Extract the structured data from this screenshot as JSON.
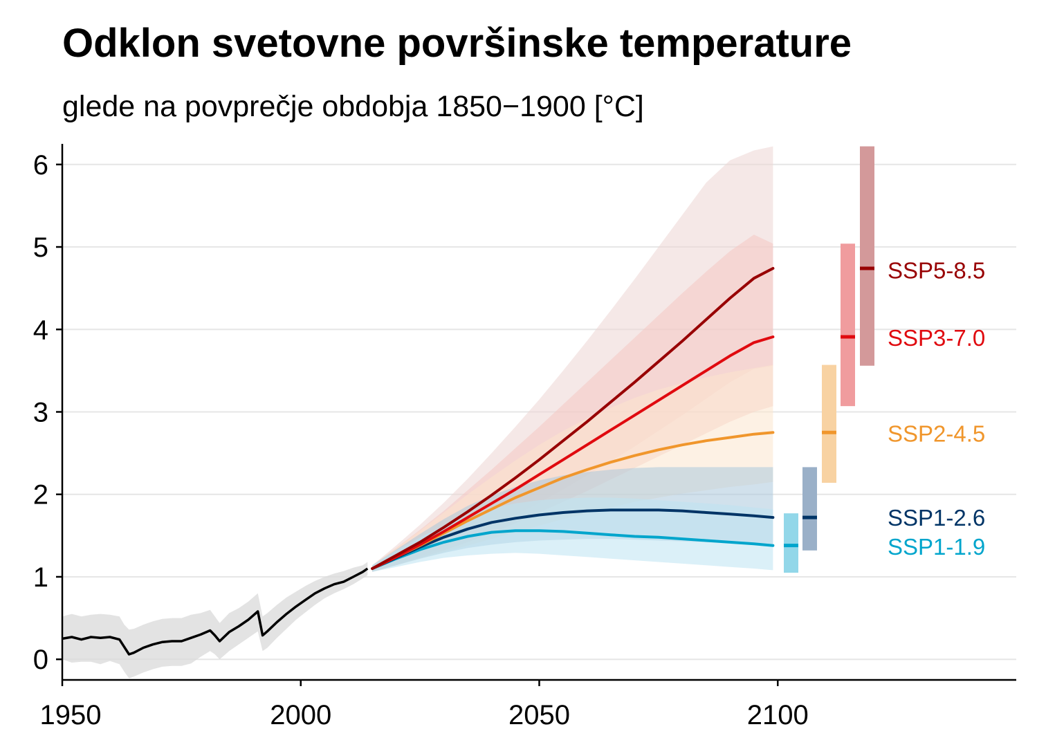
{
  "chart_data": {
    "type": "line",
    "title": "Odklon svetovne površinske temperature",
    "subtitle": "glede na povprečje obdobja 1850−1900 [°C]",
    "xlim": [
      1950,
      2150
    ],
    "ylim": [
      -0.25,
      6.25
    ],
    "x_ticks": [
      {
        "value": 1950,
        "label": "1950"
      },
      {
        "value": 2000,
        "label": "2000"
      },
      {
        "value": 2050,
        "label": "2050"
      },
      {
        "value": 2100,
        "label": "2100"
      }
    ],
    "y_ticks": [
      {
        "value": 0,
        "label": "0"
      },
      {
        "value": 1,
        "label": "1"
      },
      {
        "value": 2,
        "label": "2"
      },
      {
        "value": 3,
        "label": "3"
      },
      {
        "value": 4,
        "label": "4"
      },
      {
        "value": 5,
        "label": "5"
      },
      {
        "value": 6,
        "label": "6"
      }
    ],
    "grid": "horizontal",
    "historical": {
      "name": "historical",
      "color": "#000000",
      "band_color": "#d9d9d9",
      "x": [
        1950,
        1952,
        1954,
        1956,
        1958,
        1960,
        1962,
        1963,
        1964,
        1965,
        1967,
        1969,
        1971,
        1973,
        1975,
        1977,
        1979,
        1981,
        1982,
        1983,
        1985,
        1987,
        1989,
        1991,
        1992,
        1993,
        1995,
        1997,
        1999,
        2001,
        2003,
        2005,
        2007,
        2009,
        2011,
        2013,
        2014
      ],
      "mean": [
        0.25,
        0.27,
        0.24,
        0.27,
        0.26,
        0.27,
        0.24,
        0.15,
        0.06,
        0.08,
        0.14,
        0.18,
        0.21,
        0.22,
        0.22,
        0.26,
        0.3,
        0.35,
        0.29,
        0.22,
        0.33,
        0.4,
        0.48,
        0.58,
        0.29,
        0.34,
        0.45,
        0.55,
        0.64,
        0.72,
        0.8,
        0.86,
        0.91,
        0.94,
        1.0,
        1.06,
        1.1
      ],
      "low": [
        0.0,
        -0.04,
        -0.03,
        -0.03,
        -0.06,
        -0.02,
        -0.06,
        -0.15,
        -0.23,
        -0.21,
        -0.16,
        -0.12,
        -0.09,
        -0.08,
        -0.08,
        -0.05,
        0.03,
        0.1,
        0.06,
        0.0,
        0.1,
        0.18,
        0.26,
        0.34,
        0.1,
        0.14,
        0.26,
        0.37,
        0.48,
        0.57,
        0.66,
        0.74,
        0.8,
        0.85,
        0.91,
        0.98,
        1.02
      ],
      "high": [
        0.52,
        0.55,
        0.52,
        0.54,
        0.55,
        0.54,
        0.52,
        0.42,
        0.36,
        0.37,
        0.42,
        0.46,
        0.49,
        0.5,
        0.5,
        0.54,
        0.56,
        0.6,
        0.52,
        0.44,
        0.56,
        0.62,
        0.7,
        0.8,
        0.52,
        0.56,
        0.66,
        0.75,
        0.82,
        0.89,
        0.95,
        1.0,
        1.04,
        1.07,
        1.11,
        1.14,
        1.18
      ]
    },
    "series": [
      {
        "name": "SSP1-1.9",
        "color": "#00a5cc",
        "band_color": "#bde3f2",
        "bar_color": "#92d7e9",
        "x": [
          2015,
          2020,
          2025,
          2030,
          2035,
          2040,
          2045,
          2050,
          2055,
          2060,
          2065,
          2070,
          2075,
          2080,
          2085,
          2090,
          2095,
          2099
        ],
        "mean": [
          1.1,
          1.22,
          1.33,
          1.42,
          1.49,
          1.54,
          1.56,
          1.56,
          1.55,
          1.53,
          1.51,
          1.49,
          1.48,
          1.46,
          1.44,
          1.42,
          1.4,
          1.38
        ],
        "low": [
          1.06,
          1.12,
          1.18,
          1.23,
          1.26,
          1.28,
          1.29,
          1.28,
          1.26,
          1.24,
          1.22,
          1.2,
          1.18,
          1.16,
          1.14,
          1.12,
          1.1,
          1.08
        ],
        "high": [
          1.14,
          1.32,
          1.48,
          1.62,
          1.74,
          1.83,
          1.89,
          1.93,
          1.95,
          1.96,
          1.96,
          1.95,
          1.93,
          1.91,
          1.89,
          1.87,
          1.84,
          1.82
        ],
        "range_2100": [
          1.05,
          1.77
        ],
        "label": "SSP1-1.9"
      },
      {
        "name": "SSP1-2.6",
        "color": "#003466",
        "band_color": "#abc8dc",
        "bar_color": "#9ab0c8",
        "x": [
          2015,
          2020,
          2025,
          2030,
          2035,
          2040,
          2045,
          2050,
          2055,
          2060,
          2065,
          2070,
          2075,
          2080,
          2085,
          2090,
          2095,
          2099
        ],
        "mean": [
          1.1,
          1.23,
          1.36,
          1.48,
          1.58,
          1.66,
          1.71,
          1.75,
          1.78,
          1.8,
          1.81,
          1.81,
          1.81,
          1.8,
          1.78,
          1.76,
          1.74,
          1.72
        ],
        "low": [
          1.06,
          1.14,
          1.22,
          1.29,
          1.35,
          1.39,
          1.42,
          1.44,
          1.45,
          1.46,
          1.46,
          1.45,
          1.44,
          1.43,
          1.42,
          1.41,
          1.4,
          1.39
        ],
        "high": [
          1.14,
          1.33,
          1.52,
          1.7,
          1.86,
          1.99,
          2.09,
          2.17,
          2.23,
          2.27,
          2.3,
          2.32,
          2.33,
          2.33,
          2.33,
          2.33,
          2.33,
          2.33
        ],
        "range_2100": [
          1.32,
          2.33
        ],
        "label": "SSP1-2.6"
      },
      {
        "name": "SSP2-4.5",
        "color": "#f0962c",
        "band_color": "#fbe5cd",
        "bar_color": "#f8d2a2",
        "x": [
          2015,
          2020,
          2025,
          2030,
          2035,
          2040,
          2045,
          2050,
          2055,
          2060,
          2065,
          2070,
          2075,
          2080,
          2085,
          2090,
          2095,
          2099
        ],
        "mean": [
          1.1,
          1.24,
          1.38,
          1.53,
          1.68,
          1.82,
          1.96,
          2.08,
          2.2,
          2.3,
          2.39,
          2.47,
          2.54,
          2.6,
          2.65,
          2.69,
          2.73,
          2.75
        ],
        "low": [
          1.06,
          1.14,
          1.22,
          1.3,
          1.38,
          1.46,
          1.54,
          1.62,
          1.7,
          1.77,
          1.84,
          1.91,
          1.96,
          2.01,
          2.05,
          2.09,
          2.12,
          2.15
        ],
        "high": [
          1.14,
          1.35,
          1.56,
          1.78,
          2.0,
          2.21,
          2.41,
          2.6,
          2.77,
          2.92,
          3.05,
          3.17,
          3.27,
          3.35,
          3.42,
          3.48,
          3.53,
          3.57
        ],
        "range_2100": [
          2.14,
          3.57
        ],
        "label": "SSP2-4.5"
      },
      {
        "name": "SSP3-7.0",
        "color": "#e00a0f",
        "band_color": "#f4c6c3",
        "bar_color": "#f09c9e",
        "x": [
          2015,
          2020,
          2025,
          2030,
          2035,
          2040,
          2045,
          2050,
          2055,
          2060,
          2065,
          2070,
          2075,
          2080,
          2085,
          2090,
          2095,
          2099
        ],
        "mean": [
          1.1,
          1.24,
          1.39,
          1.55,
          1.72,
          1.89,
          2.06,
          2.24,
          2.42,
          2.6,
          2.78,
          2.96,
          3.14,
          3.32,
          3.5,
          3.68,
          3.84,
          3.91
        ],
        "low": [
          1.06,
          1.14,
          1.23,
          1.32,
          1.42,
          1.53,
          1.65,
          1.78,
          1.91,
          2.04,
          2.18,
          2.32,
          2.46,
          2.6,
          2.74,
          2.88,
          3.0,
          3.07
        ],
        "high": [
          1.14,
          1.35,
          1.57,
          1.8,
          2.05,
          2.3,
          2.56,
          2.82,
          3.09,
          3.36,
          3.63,
          3.9,
          4.17,
          4.44,
          4.7,
          4.95,
          5.15,
          5.04
        ],
        "range_2100": [
          3.07,
          5.04
        ],
        "label": "SSP3-7.0"
      },
      {
        "name": "SSP5-8.5",
        "color": "#980002",
        "band_color": "#ecd5d3",
        "bar_color": "#d3999a",
        "x": [
          2015,
          2020,
          2025,
          2030,
          2035,
          2040,
          2045,
          2050,
          2055,
          2060,
          2065,
          2070,
          2075,
          2080,
          2085,
          2090,
          2095,
          2099
        ],
        "mean": [
          1.1,
          1.26,
          1.42,
          1.6,
          1.79,
          1.99,
          2.2,
          2.42,
          2.65,
          2.88,
          3.12,
          3.36,
          3.61,
          3.86,
          4.12,
          4.38,
          4.62,
          4.74
        ],
        "low": [
          1.06,
          1.15,
          1.25,
          1.36,
          1.48,
          1.61,
          1.75,
          1.9,
          2.06,
          2.23,
          2.4,
          2.58,
          2.77,
          2.96,
          3.16,
          3.36,
          3.52,
          3.56
        ],
        "high": [
          1.14,
          1.38,
          1.63,
          1.9,
          2.19,
          2.5,
          2.82,
          3.15,
          3.5,
          3.86,
          4.23,
          4.61,
          5.0,
          5.39,
          5.78,
          6.05,
          6.17,
          6.22
        ],
        "range_2100": [
          3.56,
          6.22
        ],
        "label": "SSP5-8.5"
      }
    ]
  }
}
